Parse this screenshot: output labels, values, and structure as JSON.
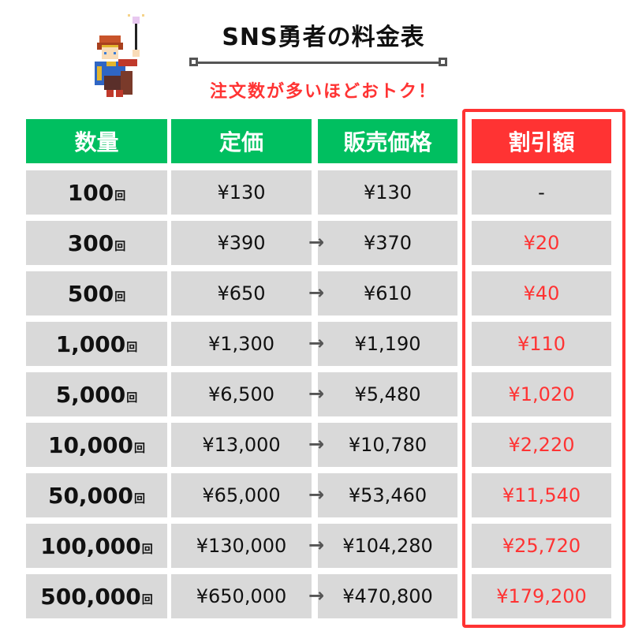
{
  "header": {
    "title": "SNS勇者の料金表",
    "subtitle": "注文数が多いほどおトク！"
  },
  "colors": {
    "green": "#00bf60",
    "red": "#ff3333",
    "cell": "#d9d9d9"
  },
  "columns": [
    "数量",
    "定価",
    "販売価格",
    "割引額"
  ],
  "unit": "回",
  "arrow": "→",
  "rows": [
    {
      "qty": "100",
      "list": "¥130",
      "sale": "¥130",
      "discount": "-"
    },
    {
      "qty": "300",
      "list": "¥390",
      "sale": "¥370",
      "discount": "¥20"
    },
    {
      "qty": "500",
      "list": "¥650",
      "sale": "¥610",
      "discount": "¥40"
    },
    {
      "qty": "1,000",
      "list": "¥1,300",
      "sale": "¥1,190",
      "discount": "¥110"
    },
    {
      "qty": "5,000",
      "list": "¥6,500",
      "sale": "¥5,480",
      "discount": "¥1,020"
    },
    {
      "qty": "10,000",
      "list": "¥13,000",
      "sale": "¥10,780",
      "discount": "¥2,220"
    },
    {
      "qty": "50,000",
      "list": "¥65,000",
      "sale": "¥53,460",
      "discount": "¥11,540"
    },
    {
      "qty": "100,000",
      "list": "¥130,000",
      "sale": "¥104,280",
      "discount": "¥25,720"
    },
    {
      "qty": "500,000",
      "list": "¥650,000",
      "sale": "¥470,800",
      "discount": "¥179,200"
    }
  ]
}
